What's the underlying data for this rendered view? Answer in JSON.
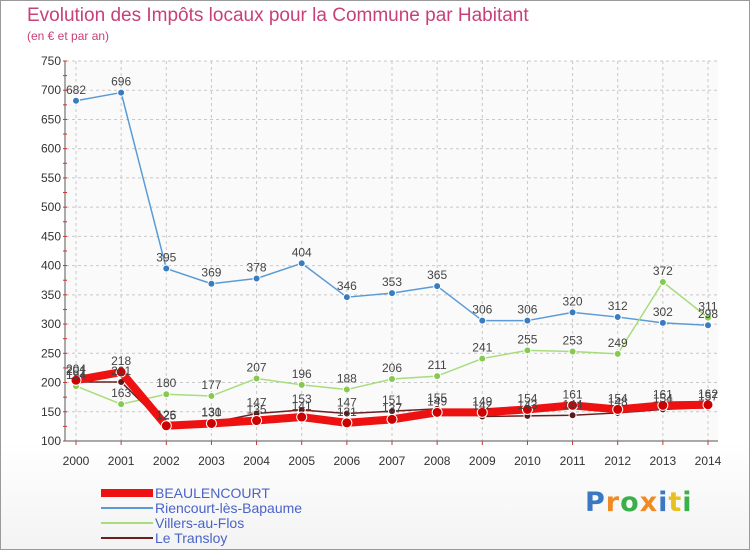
{
  "title": "Evolution des Impôts locaux pour la Commune par Habitant",
  "subtitle": "(en € et par an)",
  "brand": {
    "text": "Proxiti",
    "letter_colors": [
      "#3a78c4",
      "#f08a22",
      "#3ab04a",
      "#f08a22",
      "#3a78c4",
      "#e8c020",
      "#3ab04a"
    ]
  },
  "chart_data": {
    "type": "line",
    "title": "Evolution des Impôts locaux pour la Commune par Habitant",
    "subtitle": "(en € et par an)",
    "xlabel": "",
    "ylabel": "",
    "x": [
      "2000",
      "2001",
      "2002",
      "2003",
      "2004",
      "2005",
      "2006",
      "2007",
      "2008",
      "2009",
      "2010",
      "2011",
      "2012",
      "2013",
      "2014"
    ],
    "ylim": [
      100,
      750
    ],
    "yticks": [
      100,
      150,
      200,
      250,
      300,
      350,
      400,
      450,
      500,
      550,
      600,
      650,
      700,
      750
    ],
    "grid": true,
    "legend_position": "bottom-left",
    "series": [
      {
        "name": "Riencourt-lès-Bapaume",
        "color": "#5b9bd5",
        "marker": "#3a7cc0",
        "values": [
          682,
          696,
          395,
          369,
          378,
          404,
          346,
          353,
          365,
          306,
          306,
          320,
          312,
          302,
          298
        ],
        "labels": [
          "682",
          "696",
          "395",
          "369",
          "378",
          "404",
          "346",
          "353",
          "365",
          "306",
          "306",
          "320",
          "312",
          "302",
          "298"
        ]
      },
      {
        "name": "Villers-au-Flos",
        "color": "#a8dc7c",
        "marker": "#86c850",
        "values": [
          194,
          163,
          180,
          177,
          207,
          196,
          188,
          206,
          211,
          241,
          255,
          253,
          249,
          372,
          311
        ],
        "labels": [
          "194",
          "163",
          "180",
          "177",
          "207",
          "196",
          "188",
          "206",
          "211",
          "241",
          "255",
          "253",
          "249",
          "372",
          "311"
        ]
      },
      {
        "name": "Le Transloy",
        "color": "#6b2020",
        "marker": "#5a1a1a",
        "values": [
          201,
          201,
          125,
          131,
          147,
          153,
          147,
          151,
          155,
          142,
          143,
          144,
          148,
          154,
          157
        ],
        "labels": [
          "201",
          "201",
          "125",
          "131",
          "147",
          "153",
          "147",
          "151",
          "155",
          "142",
          "143",
          "144",
          "148",
          "154",
          "157"
        ]
      },
      {
        "name": "BEAULENCOURT",
        "color": "#ee1111",
        "marker": "#cc0000",
        "values": [
          204,
          218,
          126,
          130,
          135,
          141,
          131,
          137,
          149,
          149,
          154,
          161,
          154,
          161,
          162
        ],
        "labels": [
          "204",
          "218",
          "126",
          "130",
          "135",
          "141",
          "131",
          "137",
          "149",
          "149",
          "154",
          "161",
          "154",
          "161",
          "162"
        ]
      }
    ],
    "legend": [
      {
        "name": "BEAULENCOURT",
        "color": "#ee1111",
        "thickness": 8
      },
      {
        "name": "Riencourt-lès-Bapaume",
        "color": "#5b9bd5",
        "thickness": 2
      },
      {
        "name": "Villers-au-Flos",
        "color": "#a8dc7c",
        "thickness": 2
      },
      {
        "name": "Le Transloy",
        "color": "#6b2020",
        "thickness": 2
      }
    ]
  }
}
